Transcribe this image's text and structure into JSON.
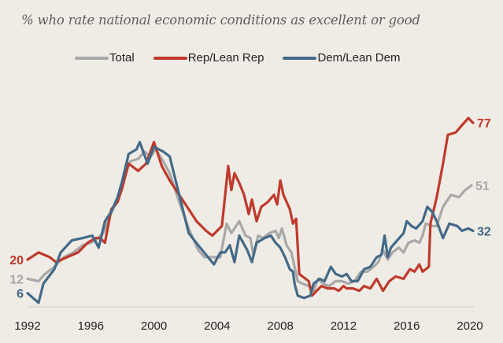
{
  "chart_data": {
    "type": "line",
    "subtitle": "% who rate national economic conditions as excellent or good",
    "title": "",
    "xlabel": "",
    "ylabel": "",
    "xlim": [
      1992,
      2020.3
    ],
    "ylim": [
      0,
      80
    ],
    "grid": false,
    "legend_position": "top-center",
    "x_ticks": [
      "1992",
      "1996",
      "2000",
      "2004",
      "2008",
      "2012",
      "2016",
      "2020"
    ],
    "series": [
      {
        "name": "Total",
        "color": "#a8a8a8",
        "start_label": "12",
        "end_label": "51",
        "points": [
          [
            1992.0,
            12
          ],
          [
            1992.7,
            11
          ],
          [
            1993.1,
            14
          ],
          [
            1993.7,
            17
          ],
          [
            1994.3,
            21
          ],
          [
            1994.9,
            23
          ],
          [
            1995.5,
            26
          ],
          [
            1996.0,
            27
          ],
          [
            1996.3,
            28
          ],
          [
            1996.8,
            31
          ],
          [
            1997.2,
            38
          ],
          [
            1997.7,
            45
          ],
          [
            1998.1,
            54
          ],
          [
            1998.5,
            61
          ],
          [
            1999.0,
            62
          ],
          [
            1999.4,
            65
          ],
          [
            1999.8,
            63
          ],
          [
            2000.1,
            66
          ],
          [
            2000.5,
            62
          ],
          [
            2001.0,
            56
          ],
          [
            2001.6,
            44
          ],
          [
            2002.2,
            33
          ],
          [
            2002.8,
            24
          ],
          [
            2003.2,
            21
          ],
          [
            2003.7,
            21
          ],
          [
            2004.2,
            21
          ],
          [
            2004.6,
            35
          ],
          [
            2004.9,
            31
          ],
          [
            2005.4,
            36
          ],
          [
            2005.8,
            30
          ],
          [
            2006.1,
            29
          ],
          [
            2006.3,
            22
          ],
          [
            2006.6,
            30
          ],
          [
            2006.9,
            29
          ],
          [
            2007.3,
            31
          ],
          [
            2007.7,
            32
          ],
          [
            2007.9,
            29
          ],
          [
            2008.1,
            33
          ],
          [
            2008.4,
            26
          ],
          [
            2008.7,
            23
          ],
          [
            2008.9,
            17
          ],
          [
            2009.1,
            11
          ],
          [
            2009.4,
            10
          ],
          [
            2009.8,
            9
          ],
          [
            2010.1,
            7
          ],
          [
            2010.4,
            12
          ],
          [
            2010.7,
            10
          ],
          [
            2011.1,
            9
          ],
          [
            2011.5,
            11
          ],
          [
            2011.9,
            11
          ],
          [
            2012.3,
            10
          ],
          [
            2012.7,
            11
          ],
          [
            2013.1,
            15
          ],
          [
            2013.5,
            15
          ],
          [
            2013.9,
            17
          ],
          [
            2014.2,
            19
          ],
          [
            2014.5,
            24
          ],
          [
            2014.8,
            20
          ],
          [
            2015.1,
            23
          ],
          [
            2015.5,
            25
          ],
          [
            2015.8,
            23
          ],
          [
            2016.1,
            27
          ],
          [
            2016.5,
            28
          ],
          [
            2016.8,
            27
          ],
          [
            2017.0,
            30
          ],
          [
            2017.2,
            35
          ],
          [
            2017.6,
            34
          ],
          [
            2017.9,
            34
          ],
          [
            2018.3,
            42
          ],
          [
            2018.8,
            47
          ],
          [
            2019.3,
            46
          ],
          [
            2019.7,
            49
          ],
          [
            2020.1,
            51
          ]
        ]
      },
      {
        "name": "Rep/Lean Rep",
        "color": "#c0392b",
        "start_label": "20",
        "end_label": "77",
        "points": [
          [
            1992.0,
            20
          ],
          [
            1992.7,
            23
          ],
          [
            1993.4,
            21
          ],
          [
            1993.8,
            19
          ],
          [
            1994.5,
            21
          ],
          [
            1995.2,
            23
          ],
          [
            1995.8,
            27
          ],
          [
            1996.3,
            29
          ],
          [
            1996.6,
            29
          ],
          [
            1996.9,
            27
          ],
          [
            1997.3,
            41
          ],
          [
            1997.7,
            44
          ],
          [
            1998.0,
            50
          ],
          [
            1998.4,
            60
          ],
          [
            1999.0,
            57
          ],
          [
            1999.5,
            60
          ],
          [
            2000.0,
            69
          ],
          [
            2000.5,
            59
          ],
          [
            2001.0,
            53
          ],
          [
            2001.6,
            47
          ],
          [
            2002.1,
            42
          ],
          [
            2002.7,
            36
          ],
          [
            2003.3,
            32
          ],
          [
            2003.7,
            30
          ],
          [
            2004.3,
            34
          ],
          [
            2004.7,
            59
          ],
          [
            2004.9,
            49
          ],
          [
            2005.1,
            56
          ],
          [
            2005.4,
            52
          ],
          [
            2005.7,
            47
          ],
          [
            2006.0,
            39
          ],
          [
            2006.2,
            45
          ],
          [
            2006.5,
            36
          ],
          [
            2006.8,
            42
          ],
          [
            2007.2,
            44
          ],
          [
            2007.6,
            47
          ],
          [
            2007.8,
            43
          ],
          [
            2008.0,
            53
          ],
          [
            2008.2,
            47
          ],
          [
            2008.6,
            41
          ],
          [
            2008.8,
            35
          ],
          [
            2009.0,
            37
          ],
          [
            2009.2,
            14
          ],
          [
            2009.4,
            13
          ],
          [
            2009.8,
            11
          ],
          [
            2010.0,
            5
          ],
          [
            2010.3,
            7
          ],
          [
            2010.6,
            9
          ],
          [
            2011.0,
            8
          ],
          [
            2011.4,
            8
          ],
          [
            2011.7,
            7
          ],
          [
            2012.0,
            9
          ],
          [
            2012.2,
            8
          ],
          [
            2012.6,
            8
          ],
          [
            2013.0,
            7
          ],
          [
            2013.3,
            9
          ],
          [
            2013.7,
            8
          ],
          [
            2014.1,
            12
          ],
          [
            2014.5,
            7
          ],
          [
            2014.9,
            11
          ],
          [
            2015.3,
            13
          ],
          [
            2015.8,
            12
          ],
          [
            2016.2,
            16
          ],
          [
            2016.5,
            15
          ],
          [
            2016.8,
            18
          ],
          [
            2017.0,
            15
          ],
          [
            2017.2,
            16
          ],
          [
            2017.4,
            17
          ],
          [
            2017.5,
            35
          ],
          [
            2017.9,
            46
          ],
          [
            2018.3,
            60
          ],
          [
            2018.6,
            72
          ],
          [
            2019.1,
            73
          ],
          [
            2019.5,
            76
          ],
          [
            2019.9,
            79
          ],
          [
            2020.2,
            77
          ]
        ]
      },
      {
        "name": "Dem/Lean Dem",
        "color": "#436a87",
        "start_label": "6",
        "end_label": "32",
        "points": [
          [
            1992.0,
            6
          ],
          [
            1992.7,
            2
          ],
          [
            1993.0,
            10
          ],
          [
            1993.7,
            16
          ],
          [
            1994.1,
            23
          ],
          [
            1994.8,
            28
          ],
          [
            1995.5,
            29
          ],
          [
            1996.1,
            30
          ],
          [
            1996.5,
            25
          ],
          [
            1996.9,
            36
          ],
          [
            1997.3,
            40
          ],
          [
            1997.7,
            46
          ],
          [
            1998.0,
            53
          ],
          [
            1998.4,
            64
          ],
          [
            1998.9,
            66
          ],
          [
            1999.1,
            69
          ],
          [
            1999.6,
            60
          ],
          [
            2000.0,
            67
          ],
          [
            2000.6,
            65
          ],
          [
            2001.0,
            63
          ],
          [
            2001.6,
            47
          ],
          [
            2002.2,
            31
          ],
          [
            2002.8,
            26
          ],
          [
            2003.3,
            22
          ],
          [
            2003.8,
            18
          ],
          [
            2004.2,
            23
          ],
          [
            2004.5,
            23
          ],
          [
            2004.8,
            26
          ],
          [
            2005.1,
            19
          ],
          [
            2005.4,
            30
          ],
          [
            2005.9,
            24
          ],
          [
            2006.2,
            19
          ],
          [
            2006.5,
            27
          ],
          [
            2007.0,
            29
          ],
          [
            2007.4,
            30
          ],
          [
            2007.7,
            27
          ],
          [
            2008.0,
            25
          ],
          [
            2008.3,
            21
          ],
          [
            2008.6,
            16
          ],
          [
            2008.8,
            15
          ],
          [
            2008.9,
            10
          ],
          [
            2009.1,
            5
          ],
          [
            2009.5,
            4
          ],
          [
            2009.9,
            5
          ],
          [
            2010.1,
            10
          ],
          [
            2010.5,
            12
          ],
          [
            2010.8,
            11
          ],
          [
            2011.2,
            17
          ],
          [
            2011.5,
            14
          ],
          [
            2011.9,
            13
          ],
          [
            2012.2,
            14
          ],
          [
            2012.5,
            11
          ],
          [
            2012.9,
            11
          ],
          [
            2013.3,
            16
          ],
          [
            2013.7,
            17
          ],
          [
            2014.1,
            21
          ],
          [
            2014.4,
            22
          ],
          [
            2014.6,
            30
          ],
          [
            2014.8,
            21
          ],
          [
            2015.0,
            25
          ],
          [
            2015.4,
            28
          ],
          [
            2015.8,
            31
          ],
          [
            2016.0,
            36
          ],
          [
            2016.3,
            34
          ],
          [
            2016.6,
            33
          ],
          [
            2017.0,
            36
          ],
          [
            2017.3,
            42
          ],
          [
            2017.6,
            40
          ],
          [
            2017.9,
            36
          ],
          [
            2018.3,
            29
          ],
          [
            2018.7,
            35
          ],
          [
            2019.2,
            34
          ],
          [
            2019.5,
            32
          ],
          [
            2019.9,
            33
          ],
          [
            2020.2,
            32
          ]
        ]
      }
    ]
  }
}
